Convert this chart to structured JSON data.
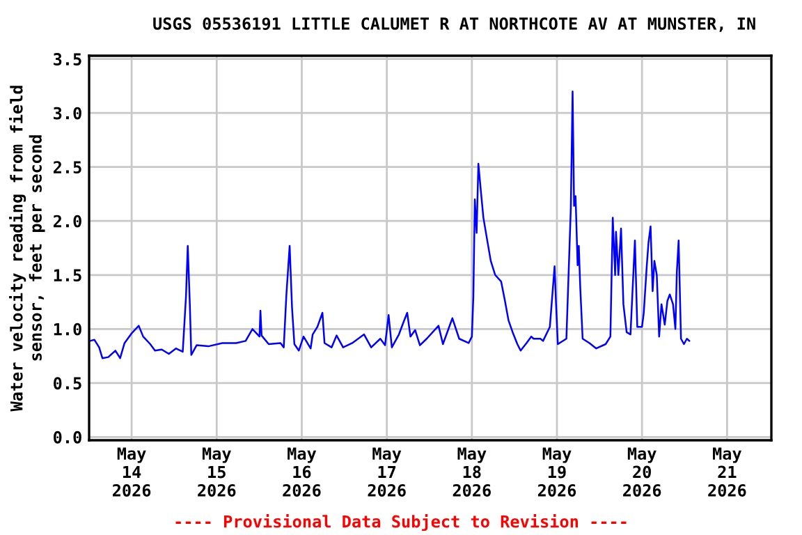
{
  "chart_data": {
    "type": "line",
    "title": "USGS 05536191 LITTLE CALUMET R AT NORTHCOTE AV AT MUNSTER, IN",
    "ylabel": "Water velocity reading from field\nsensor, feet per second",
    "annotations": [
      "---- Provisional Data Subject to Revision ----"
    ],
    "x": [
      "2026-05-13T12:15",
      "2026-05-13T13:30",
      "2026-05-13T14:50",
      "2026-05-13T15:45",
      "2026-05-13T17:25",
      "2026-05-13T19:25",
      "2026-05-13T20:45",
      "2026-05-13T22:00",
      "2026-05-14T00:00",
      "2026-05-14T02:00",
      "2026-05-14T03:15",
      "2026-05-14T05:15",
      "2026-05-14T06:35",
      "2026-05-14T08:30",
      "2026-05-14T10:30",
      "2026-05-14T12:30",
      "2026-05-14T14:25",
      "2026-05-14T15:20",
      "2026-05-14T15:50",
      "2026-05-14T16:25",
      "2026-05-14T16:50",
      "2026-05-14T18:20",
      "2026-05-14T21:40",
      "2026-05-15T01:35",
      "2026-05-15T05:30",
      "2026-05-15T08:10",
      "2026-05-15T10:05",
      "2026-05-15T12:05",
      "2026-05-15T12:20",
      "2026-05-15T12:40",
      "2026-05-15T14:40",
      "2026-05-15T18:00",
      "2026-05-15T18:55",
      "2026-05-15T19:40",
      "2026-05-15T20:35",
      "2026-05-15T21:15",
      "2026-05-15T21:55",
      "2026-05-15T23:10",
      "2026-05-16T00:30",
      "2026-05-16T02:30",
      "2026-05-16T03:05",
      "2026-05-16T04:25",
      "2026-05-16T05:50",
      "2026-05-16T06:25",
      "2026-05-16T08:25",
      "2026-05-16T09:50",
      "2026-05-16T11:40",
      "2026-05-16T14:15",
      "2026-05-16T17:35",
      "2026-05-16T19:35",
      "2026-05-16T22:10",
      "2026-05-16T23:30",
      "2026-05-17T00:30",
      "2026-05-17T01:25",
      "2026-05-17T03:25",
      "2026-05-17T04:40",
      "2026-05-17T05:45",
      "2026-05-17T06:40",
      "2026-05-17T08:00",
      "2026-05-17T09:20",
      "2026-05-17T11:15",
      "2026-05-17T14:35",
      "2026-05-17T15:50",
      "2026-05-17T18:30",
      "2026-05-17T20:25",
      "2026-05-17T23:05",
      "2026-05-18T00:00",
      "2026-05-18T00:25",
      "2026-05-18T00:50",
      "2026-05-18T01:20",
      "2026-05-18T01:50",
      "2026-05-18T02:30",
      "2026-05-18T03:15",
      "2026-05-18T04:20",
      "2026-05-18T05:20",
      "2026-05-18T06:35",
      "2026-05-18T08:15",
      "2026-05-18T09:20",
      "2026-05-18T10:20",
      "2026-05-18T11:30",
      "2026-05-18T12:50",
      "2026-05-18T13:45",
      "2026-05-18T15:25",
      "2026-05-18T16:45",
      "2026-05-18T17:25",
      "2026-05-18T19:20",
      "2026-05-18T20:05",
      "2026-05-18T22:00",
      "2026-05-18T23:20",
      "2026-05-18T23:45",
      "2026-05-19T00:15",
      "2026-05-19T02:40",
      "2026-05-19T03:55",
      "2026-05-19T04:25",
      "2026-05-19T04:50",
      "2026-05-19T05:15",
      "2026-05-19T05:50",
      "2026-05-19T06:10",
      "2026-05-19T06:35",
      "2026-05-19T07:15",
      "2026-05-19T09:10",
      "2026-05-19T11:05",
      "2026-05-19T13:45",
      "2026-05-19T15:05",
      "2026-05-19T15:45",
      "2026-05-19T16:25",
      "2026-05-19T16:40",
      "2026-05-19T17:20",
      "2026-05-19T18:05",
      "2026-05-19T18:45",
      "2026-05-19T19:40",
      "2026-05-19T20:45",
      "2026-05-19T22:00",
      "2026-05-19T22:40",
      "2026-05-20T00:00",
      "2026-05-20T00:30",
      "2026-05-20T01:20",
      "2026-05-20T01:50",
      "2026-05-20T02:25",
      "2026-05-20T03:00",
      "2026-05-20T03:30",
      "2026-05-20T04:10",
      "2026-05-20T04:50",
      "2026-05-20T05:30",
      "2026-05-20T06:25",
      "2026-05-20T07:10",
      "2026-05-20T07:50",
      "2026-05-20T08:45",
      "2026-05-20T09:25",
      "2026-05-20T09:50",
      "2026-05-20T10:20",
      "2026-05-20T11:00",
      "2026-05-20T11:50",
      "2026-05-20T12:40",
      "2026-05-20T13:20"
    ],
    "series": [
      {
        "color": "#0000ff",
        "values": [
          0.89,
          0.9,
          0.83,
          0.73,
          0.74,
          0.8,
          0.73,
          0.87,
          0.96,
          1.03,
          0.93,
          0.86,
          0.8,
          0.81,
          0.77,
          0.82,
          0.79,
          1.3,
          1.77,
          1.23,
          0.76,
          0.85,
          0.84,
          0.87,
          0.87,
          0.89,
          1.0,
          0.93,
          1.17,
          0.94,
          0.86,
          0.87,
          0.83,
          1.32,
          1.77,
          1.2,
          0.86,
          0.8,
          0.93,
          0.82,
          0.95,
          1.02,
          1.15,
          0.87,
          0.83,
          0.94,
          0.83,
          0.87,
          0.95,
          0.83,
          0.91,
          0.85,
          1.13,
          0.83,
          0.95,
          1.06,
          1.15,
          0.93,
          0.99,
          0.85,
          0.91,
          1.03,
          0.86,
          1.1,
          0.91,
          0.87,
          0.93,
          1.3,
          2.2,
          1.89,
          2.53,
          2.29,
          2.03,
          1.82,
          1.63,
          1.5,
          1.44,
          1.26,
          1.08,
          0.97,
          0.86,
          0.8,
          0.87,
          0.93,
          0.91,
          0.91,
          0.89,
          1.02,
          1.58,
          1.23,
          0.86,
          0.91,
          2.12,
          3.2,
          2.14,
          2.23,
          1.59,
          1.77,
          1.38,
          0.91,
          0.87,
          0.82,
          0.86,
          0.93,
          2.03,
          1.5,
          1.9,
          1.5,
          1.93,
          1.23,
          0.97,
          0.95,
          1.82,
          1.02,
          1.02,
          1.15,
          1.58,
          1.8,
          1.95,
          1.35,
          1.63,
          1.5,
          0.93,
          1.23,
          1.04,
          1.26,
          1.32,
          1.23,
          1.0,
          1.53,
          1.82,
          0.91,
          0.86,
          0.91,
          0.89
        ]
      }
    ],
    "xlim": [
      "2026-05-13T12:00",
      "2026-05-21T12:30"
    ],
    "xticks": [
      {
        "value": "2026-05-14",
        "label": "May\n14\n2026"
      },
      {
        "value": "2026-05-15",
        "label": "May\n15\n2026"
      },
      {
        "value": "2026-05-16",
        "label": "May\n16\n2026"
      },
      {
        "value": "2026-05-17",
        "label": "May\n17\n2026"
      },
      {
        "value": "2026-05-18",
        "label": "May\n18\n2026"
      },
      {
        "value": "2026-05-19",
        "label": "May\n19\n2026"
      },
      {
        "value": "2026-05-20",
        "label": "May\n20\n2026"
      },
      {
        "value": "2026-05-21",
        "label": "May\n21\n2026"
      }
    ],
    "ylim": [
      -0.03,
      3.53
    ],
    "yticks": [
      {
        "value": 0,
        "label": "0.0"
      },
      {
        "value": 0.5,
        "label": "0.5"
      },
      {
        "value": 1,
        "label": "1.0"
      },
      {
        "value": 1.5,
        "label": "1.5"
      },
      {
        "value": 2,
        "label": "2.0"
      },
      {
        "value": 2.5,
        "label": "2.5"
      },
      {
        "value": 3,
        "label": "3.0"
      },
      {
        "value": 3.5,
        "label": "3.5"
      }
    ],
    "grid": true,
    "legend": false,
    "marker": "none",
    "line_style": "solid"
  }
}
